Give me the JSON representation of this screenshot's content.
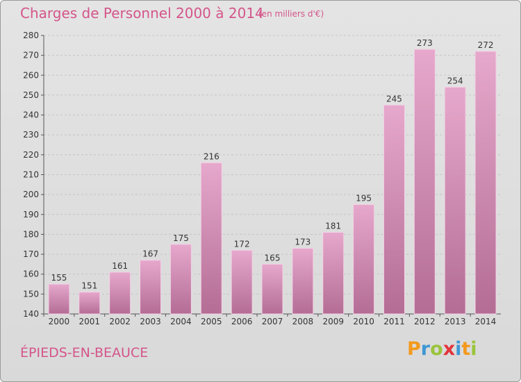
{
  "header": {
    "title": "Charges de Personnel 2000 à 2014",
    "subtitle": "(en milliers d'€)"
  },
  "footer": {
    "place": "ÉPIEDS-EN-BEAUCE",
    "logo": "Proxiti"
  },
  "colors": {
    "accent": "#d4558a",
    "bar_top": "#e6a8cc",
    "bar_bottom": "#b46d95",
    "logo_p": "#f39a1e",
    "logo_r": "#3f97d4",
    "logo_o": "#9ac43c",
    "logo_x": "#e2343c",
    "logo_i": "#3f97d4",
    "logo_t": "#f39a1e",
    "logo_i2": "#9ac43c"
  },
  "chart_data": {
    "type": "bar",
    "title": "Charges de Personnel 2000 à 2014",
    "subtitle": "(en milliers d'€)",
    "categories": [
      "2000",
      "2001",
      "2002",
      "2003",
      "2004",
      "2005",
      "2006",
      "2007",
      "2008",
      "2009",
      "2010",
      "2011",
      "2012",
      "2013",
      "2014"
    ],
    "values": [
      155,
      151,
      161,
      167,
      175,
      216,
      172,
      165,
      173,
      181,
      195,
      245,
      273,
      254,
      272
    ],
    "ylim": [
      140,
      280
    ],
    "yticks": [
      140,
      150,
      160,
      170,
      180,
      190,
      200,
      210,
      220,
      230,
      240,
      250,
      260,
      270,
      280
    ],
    "grid": true
  }
}
